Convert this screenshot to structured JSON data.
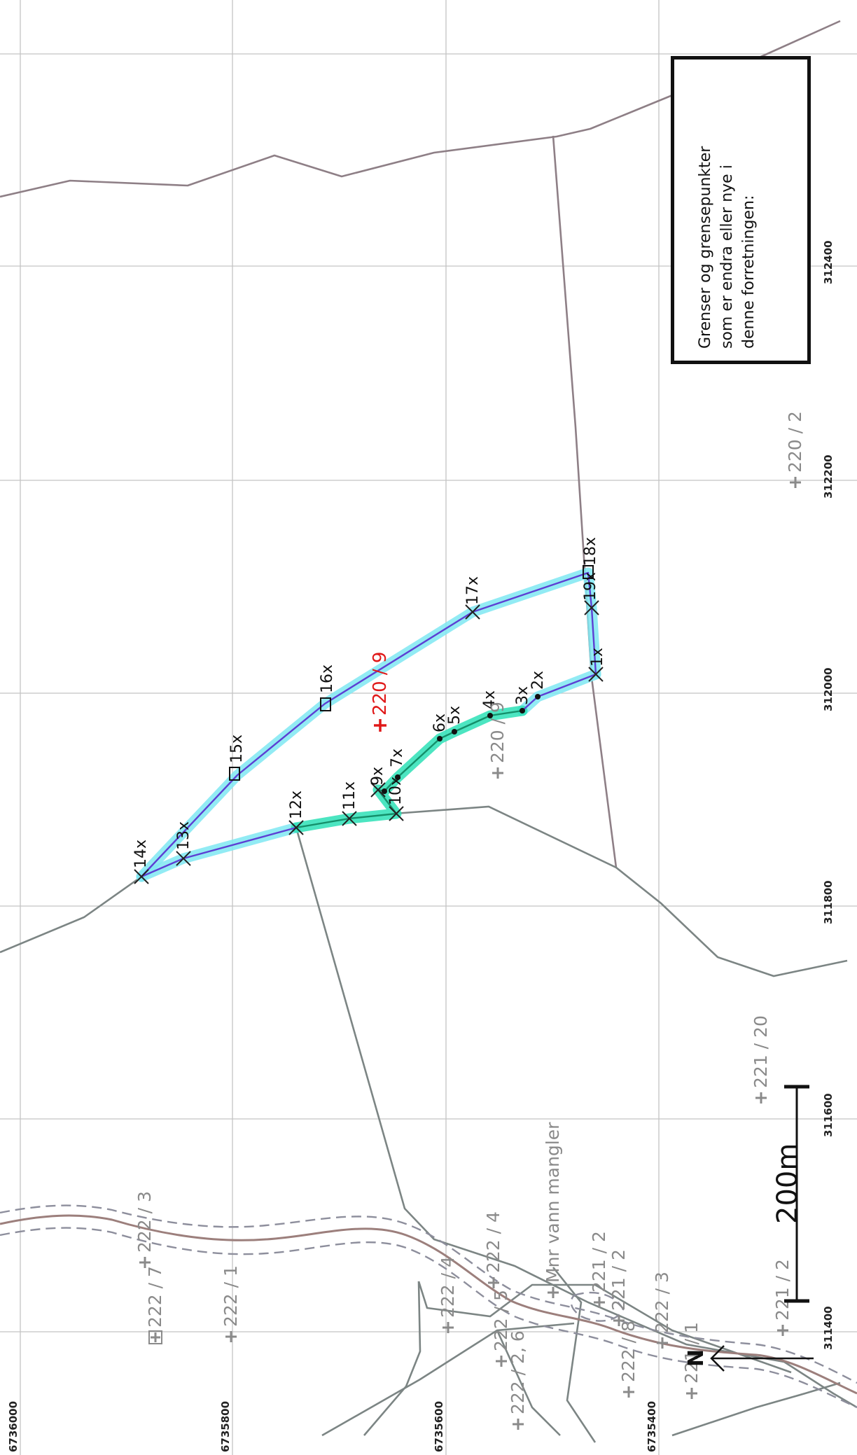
{
  "map": {
    "easting_labels": [
      "311400",
      "311600",
      "311800",
      "312000",
      "312200",
      "312400"
    ],
    "northing_labels": [
      "6736000",
      "6735800",
      "6735600",
      "6735400"
    ],
    "parcels": [
      {
        "id": "p-220-9-red",
        "label": "220 / 9",
        "highlight": true
      },
      {
        "id": "p-220-9",
        "label": "220 / 9"
      },
      {
        "id": "p-220-2",
        "label": "220 / 2"
      },
      {
        "id": "p-221-20",
        "label": "221 / 20"
      },
      {
        "id": "p-222-3a",
        "label": "222 / 3"
      },
      {
        "id": "p-222-7",
        "label": "222 / 7"
      },
      {
        "id": "p-222-1",
        "label": "222 / 1"
      },
      {
        "id": "p-222-4a",
        "label": "222 / 4"
      },
      {
        "id": "p-222-4b",
        "label": "222 / 4"
      },
      {
        "id": "p-222-5",
        "label": "222 / 5"
      },
      {
        "id": "p-222-2-6",
        "label": "222 / 2, 6"
      },
      {
        "id": "p-221-2a",
        "label": "221 / 2"
      },
      {
        "id": "p-221-2b",
        "label": "221 / 2"
      },
      {
        "id": "p-222-3b",
        "label": "222 / 3"
      },
      {
        "id": "p-222-8",
        "label": "222 / 8"
      },
      {
        "id": "p-221-1",
        "label": "221 / 1"
      },
      {
        "id": "p-221-2c",
        "label": "221 / 2"
      }
    ],
    "water_note": "Mnr vann mangler",
    "boundary_points": [
      "1x",
      "2x",
      "3x",
      "4x",
      "5x",
      "6x",
      "7x",
      "9x",
      "10x",
      "11x",
      "12x",
      "13x",
      "14x",
      "15x",
      "16x",
      "17x",
      "18x",
      "19x"
    ],
    "scale_label": "200m",
    "north_label": "N",
    "legend_text": "Grenser og grensepunkter som er endra eller nye i denne forretningen:",
    "colors": {
      "legend_line": "#19e6ee",
      "halo_cyan": "#7fe8f2",
      "halo_green": "#2de0b6",
      "core_line": "#5d3fd3",
      "parcel_highlight": "#e01818"
    }
  }
}
